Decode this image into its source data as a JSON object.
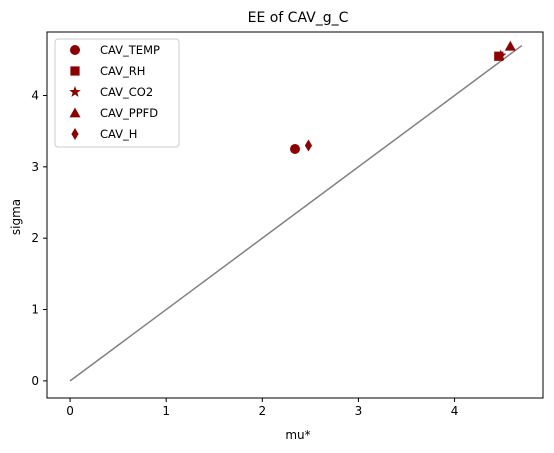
{
  "chart_data": {
    "type": "scatter",
    "title": "EE of CAV_g_C",
    "xlabel": "mu*",
    "ylabel": "sigma",
    "xlim": [
      -0.24,
      4.92
    ],
    "ylim": [
      -0.24,
      4.89
    ],
    "xticks": [
      0,
      1,
      2,
      3,
      4
    ],
    "yticks": [
      0,
      1,
      2,
      3,
      4
    ],
    "grid": false,
    "legend_position": "top-left",
    "marker_color": "#8b0000",
    "reference_line": {
      "x": [
        0,
        4.7
      ],
      "y": [
        0,
        4.7
      ],
      "color": "#808080"
    },
    "series": [
      {
        "name": "CAV_TEMP",
        "marker": "circle",
        "points": [
          {
            "x": 2.34,
            "y": 3.25
          }
        ]
      },
      {
        "name": "CAV_RH",
        "marker": "square",
        "points": [
          {
            "x": 4.46,
            "y": 4.55
          }
        ]
      },
      {
        "name": "CAV_CO2",
        "marker": "star",
        "points": [
          {
            "x": 4.48,
            "y": 4.56
          }
        ]
      },
      {
        "name": "CAV_PPFD",
        "marker": "triangle",
        "points": [
          {
            "x": 4.58,
            "y": 4.69
          }
        ]
      },
      {
        "name": "CAV_H",
        "marker": "diamond",
        "points": [
          {
            "x": 2.48,
            "y": 3.3
          }
        ]
      }
    ]
  }
}
